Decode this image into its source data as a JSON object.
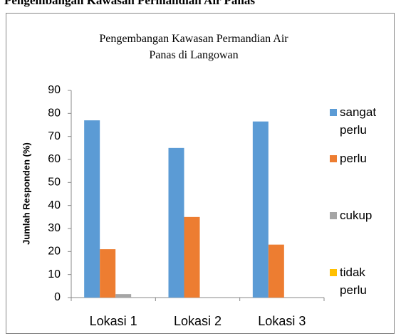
{
  "heading": "Pengembangan Kawasan Permandian Air Panas",
  "chart_data": {
    "type": "bar",
    "title": "Pengembangan Kawasan Permandian Air Panas di Langowan",
    "y_label": "Jumlah Responden (%)",
    "categories": [
      "Lokasi 1",
      "Lokasi 2",
      "Lokasi 3"
    ],
    "series": [
      {
        "name": "sangat perlu",
        "color": "#5b9bd5",
        "values": [
          77,
          65,
          76.5
        ]
      },
      {
        "name": "perlu",
        "color": "#ed7d31",
        "values": [
          21,
          35,
          23
        ]
      },
      {
        "name": "cukup",
        "color": "#a5a5a5",
        "values": [
          1.5,
          0,
          0
        ]
      },
      {
        "name": "tidak perlu",
        "color": "#ffc000",
        "values": [
          0,
          0,
          0
        ]
      }
    ],
    "ylim": [
      0,
      90
    ],
    "yticks": [
      0,
      10,
      20,
      30,
      40,
      50,
      60,
      70,
      80,
      90
    ],
    "grid": false,
    "legend": "right"
  }
}
